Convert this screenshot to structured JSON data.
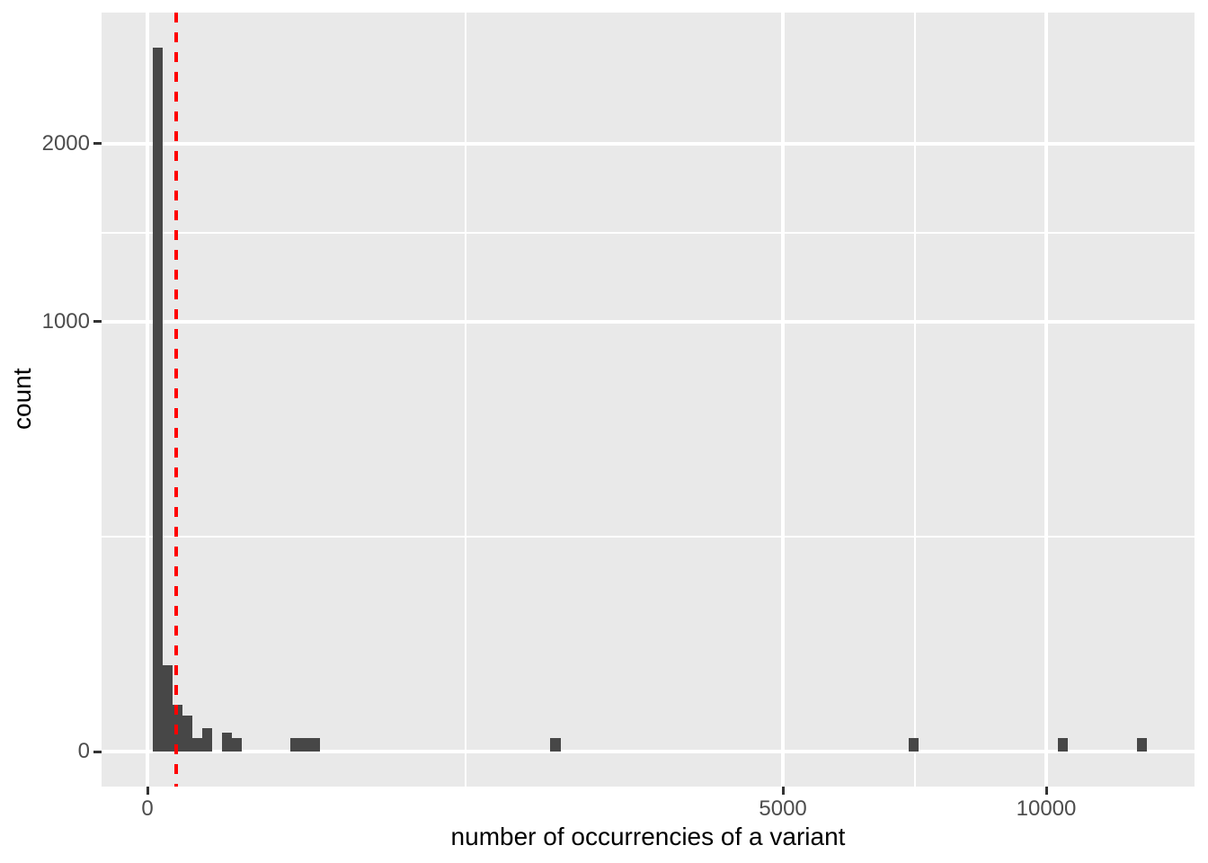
{
  "chart_data": {
    "type": "bar",
    "subtype": "histogram",
    "title": "",
    "xlabel": "number of occurrencies of a variant",
    "ylabel": "count",
    "x_scale": "sqrt",
    "y_scale": "sqrt",
    "x_ticks": [
      {
        "value": 0,
        "label": "0"
      },
      {
        "value": 5000,
        "label": "5000"
      },
      {
        "value": 10000,
        "label": "10000"
      }
    ],
    "x_minor_breaks": [
      1250,
      7287
    ],
    "y_ticks": [
      {
        "value": 0,
        "label": "0"
      },
      {
        "value": 1000,
        "label": "1000"
      },
      {
        "value": 2000,
        "label": "2000"
      }
    ],
    "y_minor_breaks": [
      250,
      1457
    ],
    "xlim_sqrt": [
      -5.1,
      116.5
    ],
    "ylim_sqrt": [
      -2.6,
      54.4
    ],
    "bins": [
      {
        "x0": 0.4,
        "x1": 2.9,
        "count": 2680
      },
      {
        "x0": 2.9,
        "x1": 7.9,
        "count": 40
      },
      {
        "x0": 7.9,
        "x1": 15.3,
        "count": 12
      },
      {
        "x0": 15.3,
        "x1": 25.2,
        "count": 7
      },
      {
        "x0": 25.2,
        "x1": 37.5,
        "count": 1
      },
      {
        "x0": 37.5,
        "x1": 52.2,
        "count": 3
      },
      {
        "x0": 69.4,
        "x1": 89.0,
        "count": 2
      },
      {
        "x0": 89.0,
        "x1": 111.0,
        "count": 1
      },
      {
        "x0": 252,
        "x1": 288,
        "count": 1
      },
      {
        "x0": 288,
        "x1": 327,
        "count": 1
      },
      {
        "x0": 327,
        "x1": 368,
        "count": 1
      },
      {
        "x0": 2011,
        "x1": 2112,
        "count": 1
      },
      {
        "x0": 7168,
        "x1": 7357,
        "count": 1
      },
      {
        "x0": 10254,
        "x1": 10479,
        "count": 1
      },
      {
        "x0": 12118,
        "x1": 12364,
        "count": 1
      }
    ],
    "vline": {
      "x": 10,
      "color": "#FF0000",
      "style": "dashed"
    },
    "colors": {
      "bar": "#474747",
      "panel_background": "#E9E9E9",
      "grid": "#FFFFFF",
      "tick_text": "#4D4D4D",
      "axis_title": "#000000",
      "tick_mark": "#333333",
      "figure_background": "#FFFFFF"
    },
    "grid": true,
    "legend": "none"
  }
}
